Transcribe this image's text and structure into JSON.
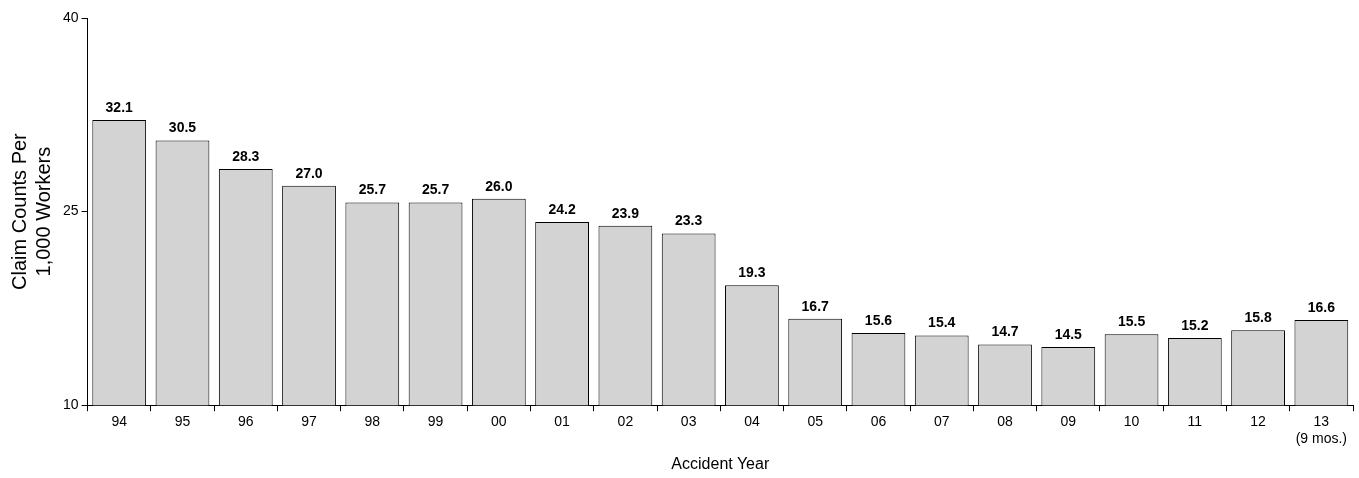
{
  "chart_data": {
    "type": "bar",
    "xlabel": "Accident Year",
    "ylabel": "Claim Counts Per\n1,000 Workers",
    "categories": [
      "94",
      "95",
      "96",
      "97",
      "98",
      "99",
      "00",
      "01",
      "02",
      "03",
      "04",
      "05",
      "06",
      "07",
      "08",
      "09",
      "10",
      "11",
      "12",
      "13\n(9 mos.)"
    ],
    "values": [
      32.1,
      30.5,
      28.3,
      27.0,
      25.7,
      25.7,
      26.0,
      24.2,
      23.9,
      23.3,
      19.3,
      16.7,
      15.6,
      15.4,
      14.7,
      14.5,
      15.5,
      15.2,
      15.8,
      16.6
    ],
    "value_labels": [
      "32.1",
      "30.5",
      "28.3",
      "27.0",
      "25.7",
      "25.7",
      "26.0",
      "24.2",
      "23.9",
      "23.3",
      "19.3",
      "16.7",
      "15.6",
      "15.4",
      "14.7",
      "14.5",
      "15.5",
      "15.2",
      "15.8",
      "16.6"
    ],
    "color": "#d3d3d3",
    "ylim": [
      10,
      40
    ],
    "yticks": [
      10,
      25,
      40
    ],
    "grid": false,
    "legend": false
  }
}
